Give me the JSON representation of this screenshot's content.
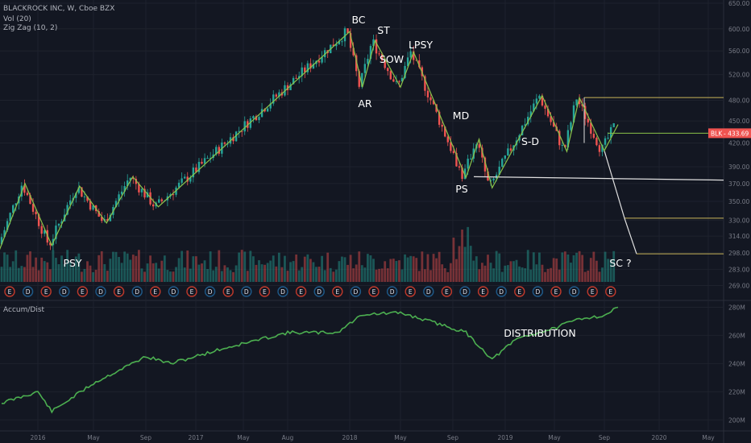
{
  "header": {
    "symbol_line": "BLACKROCK INC, W, Cboe BZX",
    "indicator_1": "Vol (20)",
    "indicator_2": "Zig Zag (10, 2)"
  },
  "lower_pane": {
    "title": "Accum/Dist"
  },
  "colors": {
    "up": "#26a69a",
    "down": "#ef5350",
    "zigzag": "#8bc34a",
    "annotation_line": "#e0e0e0",
    "accum": "#4caf50",
    "price_badge": "#ef5350"
  },
  "chart_data": [
    {
      "type": "candlestick",
      "title": "BLACKROCK INC, W, Cboe BZX",
      "x_ticks": [
        "2016",
        "May",
        "Sep",
        "2017",
        "May",
        "Aug",
        "2018",
        "May",
        "Sep",
        "2019",
        "May",
        "Sep",
        "2020",
        "May"
      ],
      "y_ticks": [
        "650.00",
        "600.00",
        "560.00",
        "520.00",
        "480.00",
        "450.00",
        "420.00",
        "390.00",
        "370.00",
        "350.00",
        "330.00",
        "314.00",
        "298.00",
        "283.00",
        "269.00"
      ],
      "ylim": [
        262,
        650
      ],
      "y_scale": "log",
      "last_price": {
        "label": "BLK",
        "value": "433.69"
      },
      "zigzag": [
        {
          "date": "2015-10",
          "price": 300
        },
        {
          "date": "2015-12",
          "price": 370
        },
        {
          "date": "2016-02",
          "price": 305
        },
        {
          "date": "2016-04",
          "price": 367
        },
        {
          "date": "2016-06",
          "price": 327
        },
        {
          "date": "2016-08",
          "price": 378
        },
        {
          "date": "2016-10",
          "price": 344
        },
        {
          "date": "2018-01",
          "price": 595
        },
        {
          "date": "2018-02",
          "price": 500
        },
        {
          "date": "2018-03",
          "price": 578
        },
        {
          "date": "2018-05",
          "price": 500
        },
        {
          "date": "2018-06",
          "price": 558
        },
        {
          "date": "2018-10",
          "price": 377
        },
        {
          "date": "2018-11",
          "price": 425
        },
        {
          "date": "2018-12",
          "price": 365
        },
        {
          "date": "2019-04",
          "price": 487
        },
        {
          "date": "2019-06",
          "price": 409
        },
        {
          "date": "2019-07",
          "price": 484
        },
        {
          "date": "2019-09",
          "price": 410
        },
        {
          "date": "2019-10",
          "price": 445
        }
      ],
      "annotations": [
        "PSY",
        "BC",
        "ST",
        "AR",
        "SOW",
        "LPSY",
        "MD",
        "PS",
        "S-D",
        "SC ?"
      ],
      "levels": [
        {
          "name": "resistance",
          "price": 484
        },
        {
          "name": "current",
          "price": 433
        },
        {
          "name": "PS",
          "price": 378
        },
        {
          "name": "target 1",
          "price": 332
        },
        {
          "name": "SC",
          "price": 297
        }
      ],
      "volume_markers": [
        "E",
        "D",
        "E",
        "D",
        "E",
        "D",
        "E",
        "D",
        "E",
        "D",
        "E",
        "D",
        "E",
        "D",
        "E",
        "D",
        "E",
        "D",
        "E",
        "D",
        "E",
        "D",
        "E",
        "D",
        "E",
        "D",
        "E",
        "D",
        "E",
        "D",
        "E",
        "D",
        "E",
        "E"
      ]
    },
    {
      "type": "line",
      "title": "Accum/Dist",
      "y_ticks": [
        "280M",
        "260M",
        "240M",
        "220M",
        "200M"
      ],
      "ylim": [
        195,
        282
      ],
      "annotation": "DISTRIBUTION",
      "x": [
        "2015-10",
        "2016-01",
        "2016-02",
        "2016-05",
        "2016-09",
        "2016-11",
        "2017-03",
        "2017-08",
        "2017-12",
        "2018-02",
        "2018-05",
        "2018-08",
        "2018-10",
        "2018-12",
        "2019-02",
        "2019-05",
        "2019-07",
        "2019-09",
        "2019-10"
      ],
      "values": [
        212,
        220,
        206,
        226,
        245,
        240,
        250,
        262,
        262,
        275,
        276,
        268,
        262,
        243,
        258,
        265,
        272,
        274,
        280
      ]
    }
  ]
}
